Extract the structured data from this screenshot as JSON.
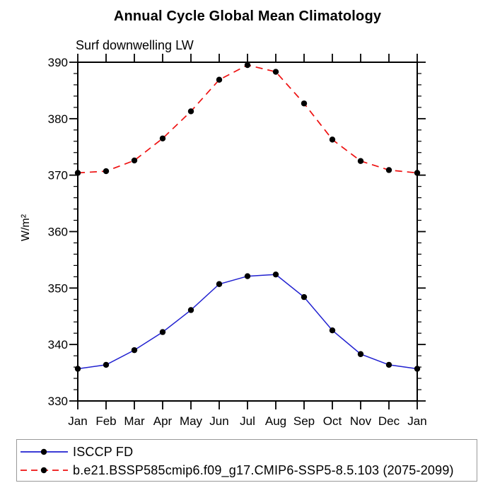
{
  "title": "Annual Cycle Global Mean Climatology",
  "subtitle": "Surf downwelling LW",
  "chart_data": {
    "type": "line",
    "x_categories": [
      "Jan",
      "Feb",
      "Mar",
      "Apr",
      "May",
      "Jun",
      "Jul",
      "Aug",
      "Sep",
      "Oct",
      "Nov",
      "Dec",
      "Jan"
    ],
    "xlabel": "",
    "ylabel": "W/m²",
    "ylim": [
      330,
      390
    ],
    "ytick_major_step": 10,
    "ytick_minor_step": 2,
    "grid": false,
    "frame_color": "#000000",
    "legend_position": "bottom-left-box",
    "series": [
      {
        "name": "ISCCP FD",
        "color": "#2020d0",
        "line_style": "solid",
        "marker": "circle",
        "marker_color": "#000000",
        "values": [
          335.7,
          336.4,
          339.0,
          342.2,
          346.1,
          350.7,
          352.1,
          352.4,
          348.4,
          342.5,
          338.3,
          336.4,
          335.7
        ]
      },
      {
        "name": "b.e21.BSSP585cmip6.f09_g17.CMIP6-SSP5-8.5.103 (2075-2099)",
        "color": "#ee1111",
        "line_style": "dashed",
        "marker": "circle",
        "marker_color": "#000000",
        "values": [
          370.4,
          370.7,
          372.6,
          376.5,
          381.3,
          386.9,
          389.5,
          388.3,
          382.7,
          376.3,
          372.5,
          370.9,
          370.4
        ]
      }
    ]
  }
}
